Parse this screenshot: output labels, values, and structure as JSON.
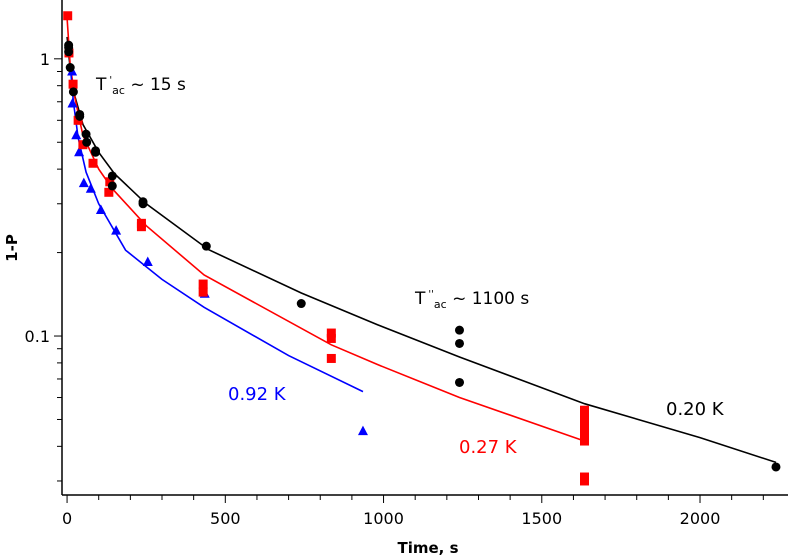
{
  "chart_data": {
    "type": "scatter",
    "title": "",
    "xlabel": "Time, s",
    "ylabel": "1-P",
    "xlim": [
      -16,
      2278
    ],
    "ylim": [
      0.0267,
      1.63
    ],
    "yscale": "log",
    "grid": false,
    "x_ticks": [
      0,
      500,
      1000,
      1500,
      2000
    ],
    "x_tick_labels": [
      "0",
      "500",
      "1000",
      "1500",
      "2000"
    ],
    "y_ticks": [
      1,
      0.1
    ],
    "y_tick_labels": [
      "1",
      "0.1"
    ],
    "annotations": [
      {
        "main": "T",
        "sup": "'",
        "sub": "ac",
        "rest": " ~ 15 s"
      },
      {
        "main": "T",
        "sup": "''",
        "sub": "ac",
        "rest": " ~ 1100 s"
      }
    ],
    "series": [
      {
        "name": "0.20 K",
        "color": "#000000",
        "marker": "circle",
        "points": [
          [
            5,
            1.12
          ],
          [
            5,
            1.1
          ],
          [
            5,
            1.06
          ],
          [
            10,
            0.93
          ],
          [
            20,
            0.76
          ],
          [
            40,
            0.63
          ],
          [
            40,
            0.62
          ],
          [
            60,
            0.535
          ],
          [
            62,
            0.5
          ],
          [
            90,
            0.466
          ],
          [
            90,
            0.46
          ],
          [
            143,
            0.378
          ],
          [
            143,
            0.348
          ],
          [
            240,
            0.305
          ],
          [
            240,
            0.3
          ],
          [
            440,
            0.211
          ],
          [
            740,
            0.131
          ],
          [
            1240,
            0.105
          ],
          [
            1240,
            0.094
          ],
          [
            1240,
            0.068
          ],
          [
            2240,
            0.0337
          ]
        ],
        "fit": [
          [
            0,
            1.2
          ],
          [
            10,
            0.92
          ],
          [
            25,
            0.73
          ],
          [
            50,
            0.58
          ],
          [
            100,
            0.46
          ],
          [
            150,
            0.385
          ],
          [
            250,
            0.3
          ],
          [
            447,
            0.205
          ],
          [
            740,
            0.143
          ],
          [
            980,
            0.11
          ],
          [
            1240,
            0.084
          ],
          [
            1635,
            0.057
          ],
          [
            2000,
            0.043
          ],
          [
            2240,
            0.035
          ]
        ]
      },
      {
        "name": "0.27 K",
        "color": "#ff0000",
        "marker": "square",
        "points": [
          [
            2,
            1.43
          ],
          [
            6,
            1.05
          ],
          [
            19,
            0.81
          ],
          [
            35,
            0.6
          ],
          [
            50,
            0.49
          ],
          [
            82,
            0.42
          ],
          [
            135,
            0.36
          ],
          [
            132,
            0.33
          ],
          [
            235,
            0.255
          ],
          [
            235,
            0.248
          ],
          [
            430,
            0.154
          ],
          [
            430,
            0.144
          ],
          [
            835,
            0.1025
          ],
          [
            835,
            0.098
          ],
          [
            835,
            0.083
          ],
          [
            1635,
            0.054
          ],
          [
            1635,
            0.0506
          ],
          [
            1635,
            0.0473
          ],
          [
            1635,
            0.0446
          ],
          [
            1635,
            0.0418
          ],
          [
            1635,
            0.031
          ],
          [
            1635,
            0.03
          ]
        ],
        "fit": [
          [
            0,
            1.4
          ],
          [
            10,
            0.95
          ],
          [
            25,
            0.72
          ],
          [
            50,
            0.53
          ],
          [
            100,
            0.4
          ],
          [
            143,
            0.34
          ],
          [
            250,
            0.25
          ],
          [
            433,
            0.166
          ],
          [
            835,
            0.093
          ],
          [
            980,
            0.079
          ],
          [
            1240,
            0.06
          ],
          [
            1630,
            0.042
          ]
        ]
      },
      {
        "name": "0.92 K",
        "color": "#0000ff",
        "marker": "triangle",
        "points": [
          [
            16,
            0.9
          ],
          [
            17,
            0.69
          ],
          [
            29,
            0.53
          ],
          [
            38,
            0.46
          ],
          [
            53,
            0.356
          ],
          [
            75,
            0.34
          ],
          [
            107,
            0.285
          ],
          [
            155,
            0.24
          ],
          [
            255,
            0.185
          ],
          [
            435,
            0.142
          ],
          [
            935,
            0.0454
          ]
        ],
        "fit": [
          [
            10,
            0.95
          ],
          [
            20,
            0.7
          ],
          [
            35,
            0.52
          ],
          [
            60,
            0.39
          ],
          [
            100,
            0.3
          ],
          [
            185,
            0.204
          ],
          [
            300,
            0.16
          ],
          [
            433,
            0.127
          ],
          [
            700,
            0.085
          ],
          [
            935,
            0.063
          ]
        ]
      }
    ]
  }
}
